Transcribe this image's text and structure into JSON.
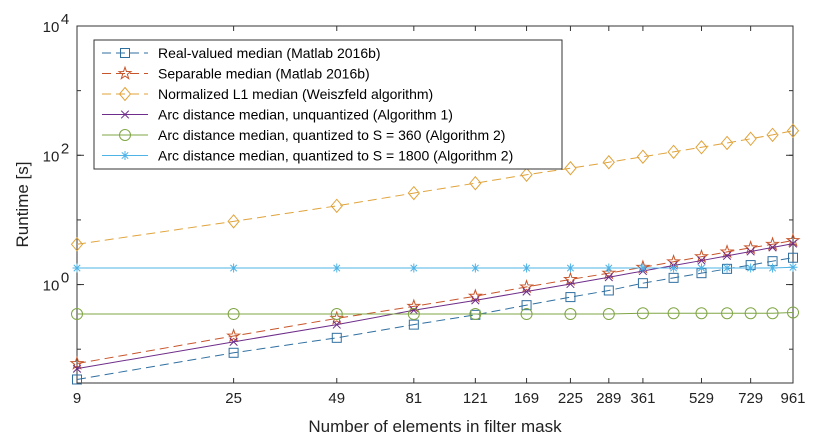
{
  "chart_data": {
    "type": "line",
    "xlabel": "Number of elements in filter mask",
    "ylabel": "Runtime [s]",
    "x_scale": "log",
    "y_scale": "log",
    "xlim": [
      9,
      961
    ],
    "ylim": [
      0.03,
      10000
    ],
    "x_ticks": [
      9,
      25,
      49,
      81,
      121,
      169,
      225,
      289,
      361,
      529,
      729,
      961
    ],
    "y_ticks": [
      {
        "value": 1,
        "base": "10",
        "exp": "0"
      },
      {
        "value": 100,
        "base": "10",
        "exp": "2"
      },
      {
        "value": 10000,
        "base": "10",
        "exp": "4"
      }
    ],
    "grid": false,
    "legend_position": "top-left",
    "x": [
      9,
      25,
      49,
      81,
      121,
      169,
      225,
      289,
      361,
      441,
      529,
      625,
      729,
      841,
      961
    ],
    "series": [
      {
        "name": "Real-valued median (Matlab 2016b)",
        "color": "#2f6fa0",
        "marker": "square",
        "dash": "dashed",
        "values": [
          0.034,
          0.088,
          0.15,
          0.24,
          0.34,
          0.48,
          0.64,
          0.81,
          1.05,
          1.27,
          1.5,
          1.75,
          2.0,
          2.3,
          2.6
        ]
      },
      {
        "name": "Separable median (Matlab 2016b)",
        "color": "#c8552a",
        "marker": "star",
        "dash": "dashed",
        "values": [
          0.06,
          0.16,
          0.3,
          0.46,
          0.66,
          0.92,
          1.2,
          1.5,
          1.85,
          2.25,
          2.7,
          3.2,
          3.7,
          4.2,
          4.8
        ]
      },
      {
        "name": "Normalized L1 median (Weiszfeld algorithm)",
        "color": "#e0a33a",
        "marker": "diamond",
        "dash": "dashed",
        "values": [
          4.2,
          9.5,
          16.5,
          26,
          37,
          50,
          63,
          78,
          95,
          113,
          133,
          155,
          180,
          207,
          240
        ]
      },
      {
        "name": "Arc distance median, unquantized (Algorithm 1)",
        "color": "#6e2d8a",
        "marker": "x",
        "dash": "solid",
        "values": [
          0.05,
          0.13,
          0.24,
          0.4,
          0.57,
          0.78,
          1.02,
          1.3,
          1.62,
          1.97,
          2.35,
          2.78,
          3.25,
          3.75,
          4.3
        ]
      },
      {
        "name": "Arc distance median, quantized to S = 360 (Algorithm 2)",
        "color": "#7fa544",
        "marker": "circle",
        "dash": "solid",
        "values": [
          0.35,
          0.35,
          0.35,
          0.35,
          0.35,
          0.35,
          0.35,
          0.35,
          0.36,
          0.36,
          0.36,
          0.36,
          0.36,
          0.36,
          0.37
        ]
      },
      {
        "name": "Arc distance median, quantized to S = 1800 (Algorithm 2)",
        "color": "#4eb3e6",
        "marker": "asterisk",
        "dash": "solid",
        "values": [
          1.8,
          1.8,
          1.8,
          1.8,
          1.8,
          1.8,
          1.8,
          1.8,
          1.8,
          1.8,
          1.8,
          1.8,
          1.8,
          1.8,
          1.85
        ]
      }
    ]
  }
}
